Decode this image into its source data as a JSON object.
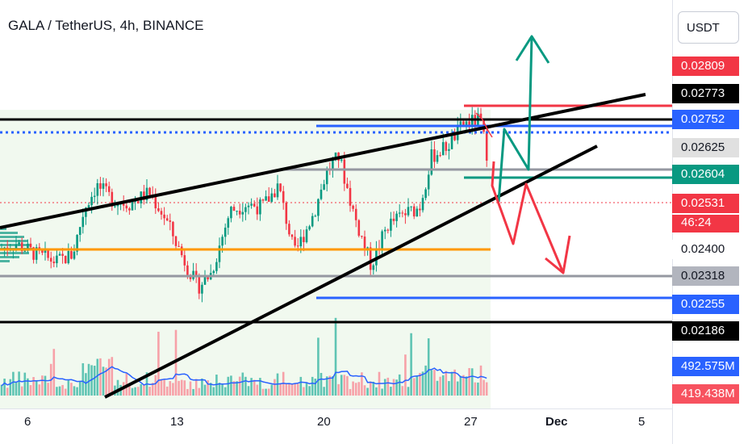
{
  "header": {
    "title": "GALA / TetherUS, 4h, BINANCE",
    "currency_button": "USDT"
  },
  "price_labels": [
    {
      "text": "0.02809",
      "bg": "#f23645",
      "fg": "#ffffff"
    },
    {
      "text": "0.02773",
      "bg": "#000000",
      "fg": "#ffffff"
    },
    {
      "text": "0.02752",
      "bg": "#2962ff",
      "fg": "#ffffff"
    },
    {
      "text": "0.02625",
      "bg": "#e0e0e0",
      "fg": "#131722"
    },
    {
      "text": "0.02604",
      "bg": "#089981",
      "fg": "#ffffff"
    },
    {
      "text": "0.02531",
      "bg": "#f23645",
      "fg": "#ffffff"
    },
    {
      "text": "46:24",
      "bg": "#f23645",
      "fg": "#ffffff"
    },
    {
      "text": "0.02400",
      "bg": "#ffffff",
      "fg": "#131722"
    },
    {
      "text": "0.02318",
      "bg": "#b2b5be",
      "fg": "#131722"
    },
    {
      "text": "0.02255",
      "bg": "#2962ff",
      "fg": "#ffffff"
    },
    {
      "text": "0.02186",
      "bg": "#000000",
      "fg": "#ffffff"
    },
    {
      "text": "492.575M",
      "bg": "#2962ff",
      "fg": "#ffffff"
    },
    {
      "text": "419.438M",
      "bg": "#f7525f",
      "fg": "#ffffff"
    }
  ],
  "x_axis_labels": [
    "6",
    "13",
    "20",
    "27",
    "Dec",
    "5"
  ],
  "chart_data": {
    "type": "candlestick",
    "symbol": "GALA / TetherUS",
    "interval": "4h",
    "exchange": "BINANCE",
    "y_unit": "USDT",
    "last_price": 0.02531,
    "countdown": "46:24",
    "volume_ma_value": "492.575M",
    "last_volume": "419.438M",
    "colors": {
      "up": "#089981",
      "down": "#f23645",
      "volume_up": "#5fc4b3",
      "volume_down": "#f7a1a8",
      "volume_ma": "#2962ff",
      "trendline": "#000000",
      "resistance_red": "#f23645",
      "support_blue": "#2962ff",
      "gray_level": "#9598a1",
      "orange_level": "#ff9800",
      "green_level": "#089981",
      "range_shade": "#eef8ec"
    },
    "horizontal_levels": [
      {
        "price": 0.02809,
        "color": "#f23645",
        "label": "0.02809"
      },
      {
        "price": 0.02773,
        "color": "#000000",
        "label": "0.02773"
      },
      {
        "price": 0.02752,
        "color": "#2962ff",
        "label": "0.02752"
      },
      {
        "price": 0.02625,
        "color": "#9598a1",
        "label": "0.02625"
      },
      {
        "price": 0.02604,
        "color": "#089981",
        "label": "0.02604"
      },
      {
        "price": 0.024,
        "color": "#ff9800",
        "label": "0.02400"
      },
      {
        "price": 0.02318,
        "color": "#9598a1",
        "label": "0.02318"
      },
      {
        "price": 0.02255,
        "color": "#2962ff",
        "label": "0.02255"
      },
      {
        "price": 0.02186,
        "color": "#000000",
        "label": "0.02186"
      }
    ],
    "scenarios": [
      {
        "color": "#089981",
        "path": [
          [
            0.02531,
            0
          ],
          [
            0.02752,
            1
          ],
          [
            0.02604,
            2
          ],
          [
            0.0302,
            3
          ]
        ]
      },
      {
        "color": "#f23645",
        "path": [
          [
            0.02531,
            0
          ],
          [
            0.0241,
            1
          ],
          [
            0.02604,
            2
          ],
          [
            0.02345,
            3
          ]
        ]
      }
    ]
  }
}
